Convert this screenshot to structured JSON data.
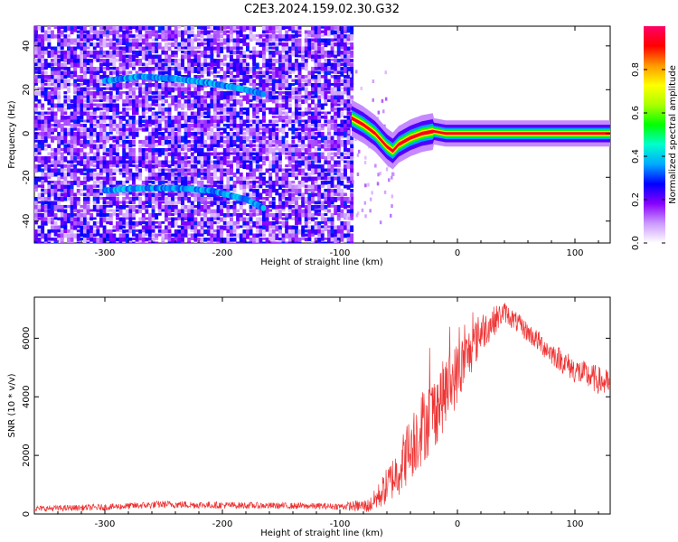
{
  "figure": {
    "title": "C2E3.2024.159.02.30.G32"
  },
  "chart_data": [
    {
      "type": "heatmap",
      "panel": "top",
      "xlabel": "Height of straight line (km)",
      "ylabel": "Frequency (Hz)",
      "xlim": [
        -360,
        130
      ],
      "ylim": [
        -50,
        49
      ],
      "xticks": [
        -300,
        -200,
        -100,
        0,
        100
      ],
      "yticks": [
        -40,
        -20,
        0,
        20,
        40
      ],
      "colorbar": {
        "label": "Normalized spectral amplitude",
        "range": [
          0.0,
          1.0
        ],
        "ticks": [
          0.0,
          0.2,
          0.4,
          0.6,
          0.8
        ],
        "colors": [
          "#ffffff",
          "#cc99ff",
          "#8800ff",
          "#0000ff",
          "#00aaff",
          "#00ffcc",
          "#00ff00",
          "#aaff00",
          "#ffff00",
          "#ff9900",
          "#ff0000",
          "#ff0066"
        ]
      },
      "noise_region_x": [
        -360,
        -90
      ],
      "faint_traces": [
        {
          "x": [
            -300,
            -270,
            -240,
            -210,
            -180,
            -165
          ],
          "y": [
            24,
            26,
            25,
            23,
            20,
            18
          ]
        },
        {
          "x": [
            -300,
            -270,
            -240,
            -210,
            -180,
            -165
          ],
          "y": [
            -26,
            -25,
            -25,
            -26,
            -30,
            -34
          ]
        }
      ],
      "signal_trace": {
        "x": [
          -90,
          -80,
          -70,
          -60,
          -55,
          -50,
          -40,
          -30,
          -20,
          -10,
          0,
          20,
          50,
          80,
          100,
          130
        ],
        "y": [
          7,
          4,
          0,
          -6,
          -8,
          -5,
          -2,
          0,
          1,
          0,
          0,
          0,
          0,
          0,
          0,
          0
        ]
      }
    },
    {
      "type": "line",
      "panel": "bottom",
      "xlabel": "Height of straight line (km)",
      "ylabel": "SNR (10 * v/v)",
      "xlim": [
        -360,
        130
      ],
      "ylim": [
        0,
        7400
      ],
      "xticks": [
        -300,
        -200,
        -100,
        0,
        100
      ],
      "yticks": [
        0,
        2000,
        4000,
        6000
      ],
      "color": "#ee3333",
      "envelope": {
        "x": [
          -360,
          -300,
          -250,
          -200,
          -150,
          -100,
          -75,
          -65,
          -50,
          -35,
          -20,
          0,
          20,
          40,
          60,
          80,
          100,
          130
        ],
        "mid": [
          180,
          230,
          330,
          300,
          280,
          260,
          280,
          700,
          1500,
          2700,
          3500,
          4800,
          6200,
          6900,
          6200,
          5500,
          4900,
          4400
        ],
        "amp": [
          100,
          110,
          130,
          120,
          110,
          110,
          250,
          500,
          900,
          1300,
          1300,
          1100,
          700,
          350,
          350,
          400,
          450,
          500
        ]
      }
    }
  ]
}
